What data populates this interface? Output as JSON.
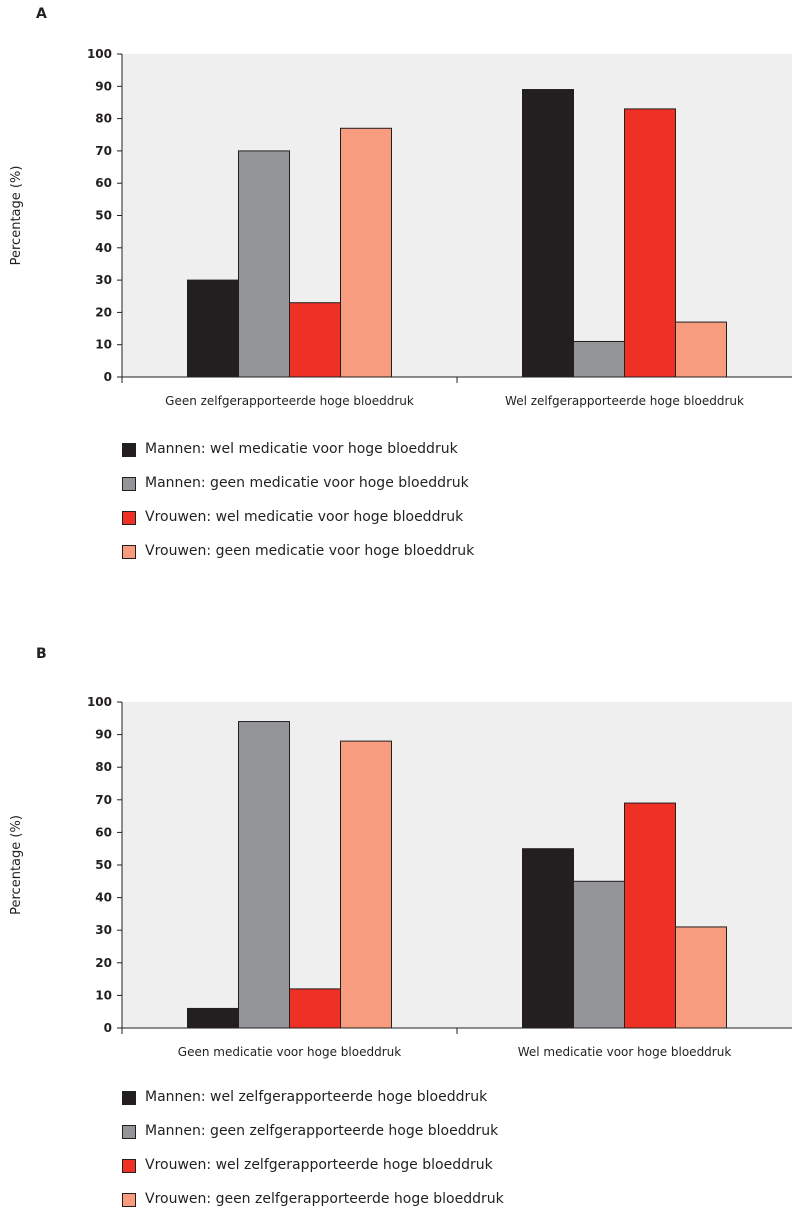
{
  "chart_data": [
    {
      "panel_label": "A",
      "type": "bar",
      "ylabel": "Percentage (%)",
      "ylim": [
        0,
        100
      ],
      "yticks": [
        0,
        10,
        20,
        30,
        40,
        50,
        60,
        70,
        80,
        90,
        100
      ],
      "grid": false,
      "background": "#efefef",
      "categories": [
        "Geen zelfgerapporteerde hoge bloeddruk",
        "Wel zelfgerapporteerde hoge bloeddruk"
      ],
      "series": [
        {
          "name": "Mannen: wel medicatie voor hoge bloeddruk",
          "color": "#231f20",
          "values": [
            30,
            89
          ]
        },
        {
          "name": "Mannen: geen medicatie voor hoge bloeddruk",
          "color": "#939598",
          "values": [
            70,
            11
          ]
        },
        {
          "name": "Vrouwen: wel medicatie voor hoge bloeddruk",
          "color": "#ee3124",
          "values": [
            23,
            83
          ]
        },
        {
          "name": "Vrouwen: geen medicatie voor hoge bloeddruk",
          "color": "#f79c7f",
          "values": [
            77,
            17
          ]
        }
      ]
    },
    {
      "panel_label": "B",
      "type": "bar",
      "ylabel": "Percentage (%)",
      "ylim": [
        0,
        100
      ],
      "yticks": [
        0,
        10,
        20,
        30,
        40,
        50,
        60,
        70,
        80,
        90,
        100
      ],
      "grid": false,
      "background": "#efefef",
      "categories": [
        "Geen medicatie voor hoge bloeddruk",
        "Wel medicatie voor hoge bloeddruk"
      ],
      "series": [
        {
          "name": "Mannen: wel zelfgerapporteerde hoge bloeddruk",
          "color": "#231f20",
          "values": [
            6,
            55
          ]
        },
        {
          "name": "Mannen: geen zelfgerapporteerde hoge bloeddruk",
          "color": "#939598",
          "values": [
            94,
            45
          ]
        },
        {
          "name": "Vrouwen: wel zelfgerapporteerde hoge bloeddruk",
          "color": "#ee3124",
          "values": [
            12,
            69
          ]
        },
        {
          "name": "Vrouwen: geen zelfgerapporteerde hoge bloeddruk",
          "color": "#f79c7f",
          "values": [
            88,
            31
          ]
        }
      ]
    }
  ]
}
